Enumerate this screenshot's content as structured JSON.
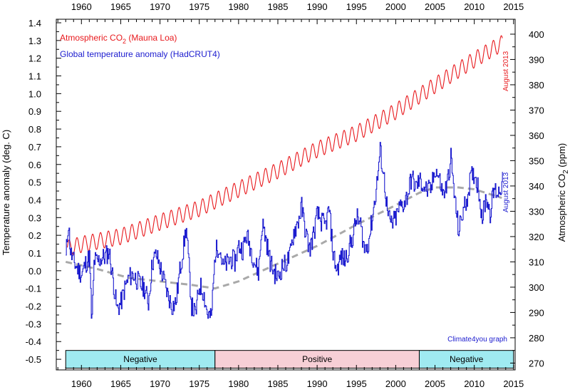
{
  "chart_data": {
    "type": "line",
    "x_ticks": [
      "1960",
      "1965",
      "1970",
      "1975",
      "1980",
      "1985",
      "1990",
      "1995",
      "2000",
      "2005",
      "2010",
      "2015"
    ],
    "x_values": [
      1960,
      1965,
      1970,
      1975,
      1980,
      1985,
      1990,
      1995,
      2000,
      2005,
      2010,
      2015
    ],
    "xlim": [
      1956.8,
      2015.2
    ],
    "y_left": {
      "label": "Temperature anomaly (deg. C)",
      "ticks": [
        "1.4",
        "1.3",
        "1.2",
        "1.1",
        "1.0",
        "0.9",
        "0.8",
        "0.7",
        "0.6",
        "0.5",
        "0.4",
        "0.3",
        "0.2",
        "0.1",
        "0.0",
        "-0.1",
        "-0.2",
        "-0.3",
        "-0.4",
        "-0.5"
      ],
      "tick_values": [
        1.4,
        1.3,
        1.2,
        1.1,
        1.0,
        0.9,
        0.8,
        0.7,
        0.6,
        0.5,
        0.4,
        0.3,
        0.2,
        0.1,
        0.0,
        -0.1,
        -0.2,
        -0.3,
        -0.4,
        -0.5
      ],
      "lim": [
        -0.56,
        1.42
      ]
    },
    "y_right": {
      "label_main": "Atmospheric CO",
      "label_sub": "2",
      "label_unit": " (ppm)",
      "ticks": [
        "400",
        "390",
        "380",
        "370",
        "360",
        "350",
        "340",
        "330",
        "320",
        "310",
        "300",
        "290",
        "280",
        "270"
      ],
      "tick_values": [
        400,
        390,
        380,
        370,
        360,
        350,
        340,
        330,
        320,
        310,
        300,
        290,
        280,
        270
      ],
      "lim": [
        267.3,
        405.9
      ]
    },
    "grid": false,
    "legend_position": "top-left",
    "series": [
      {
        "name": "Atmospheric CO",
        "name_sub": "2",
        "name_suffix": " (Mauna Loa)",
        "axis": "right",
        "color": "#e8191d",
        "trend_points": [
          [
            1958.2,
            315.3
          ],
          [
            1960,
            316.9
          ],
          [
            1965,
            320.0
          ],
          [
            1970,
            325.7
          ],
          [
            1975,
            331.1
          ],
          [
            1980,
            338.7
          ],
          [
            1985,
            346.1
          ],
          [
            1990,
            354.4
          ],
          [
            1995,
            360.8
          ],
          [
            2000,
            369.5
          ],
          [
            2005,
            379.8
          ],
          [
            2010,
            389.9
          ],
          [
            2013.6,
            396.5
          ]
        ],
        "seasonal_amplitude": 3.2
      },
      {
        "name": "Global temperature anomaly (HadCRUT4)",
        "axis": "left",
        "color": "#1c1ccf",
        "points": [
          [
            1958.0,
            0.07
          ],
          [
            1958.3,
            0.28
          ],
          [
            1958.6,
            0.1
          ],
          [
            1959.0,
            0.05
          ],
          [
            1959.5,
            0.01
          ],
          [
            1960.0,
            -0.02
          ],
          [
            1960.5,
            0.04
          ],
          [
            1961.0,
            0.08
          ],
          [
            1961.3,
            -0.32
          ],
          [
            1961.6,
            0.06
          ],
          [
            1962.0,
            0.05
          ],
          [
            1962.5,
            0.07
          ],
          [
            1963.0,
            0.08
          ],
          [
            1963.5,
            0.11
          ],
          [
            1964.0,
            -0.05
          ],
          [
            1964.5,
            -0.22
          ],
          [
            1965.0,
            -0.18
          ],
          [
            1965.5,
            -0.1
          ],
          [
            1966.0,
            -0.04
          ],
          [
            1966.5,
            -0.02
          ],
          [
            1967.0,
            -0.05
          ],
          [
            1967.5,
            -0.08
          ],
          [
            1968.0,
            -0.1
          ],
          [
            1968.5,
            -0.18
          ],
          [
            1969.0,
            0.05
          ],
          [
            1969.5,
            0.09
          ],
          [
            1970.0,
            0.02
          ],
          [
            1970.5,
            -0.06
          ],
          [
            1971.0,
            -0.14
          ],
          [
            1971.5,
            -0.2
          ],
          [
            1972.0,
            -0.18
          ],
          [
            1972.5,
            0.0
          ],
          [
            1973.0,
            0.14
          ],
          [
            1973.3,
            0.25
          ],
          [
            1973.6,
            0.06
          ],
          [
            1974.0,
            -0.2
          ],
          [
            1974.5,
            -0.25
          ],
          [
            1975.0,
            -0.08
          ],
          [
            1975.5,
            -0.12
          ],
          [
            1976.0,
            -0.24
          ],
          [
            1976.5,
            -0.27
          ],
          [
            1977.0,
            0.1
          ],
          [
            1977.5,
            0.15
          ],
          [
            1978.0,
            0.02
          ],
          [
            1978.5,
            0.04
          ],
          [
            1979.0,
            0.07
          ],
          [
            1979.5,
            0.05
          ],
          [
            1980.0,
            0.14
          ],
          [
            1980.5,
            0.12
          ],
          [
            1981.0,
            0.2
          ],
          [
            1981.5,
            0.13
          ],
          [
            1982.0,
            0.05
          ],
          [
            1982.5,
            -0.01
          ],
          [
            1983.0,
            0.27
          ],
          [
            1983.5,
            0.17
          ],
          [
            1984.0,
            0.05
          ],
          [
            1984.5,
            -0.01
          ],
          [
            1985.0,
            -0.04
          ],
          [
            1985.5,
            0.02
          ],
          [
            1986.0,
            0.04
          ],
          [
            1986.5,
            0.08
          ],
          [
            1987.0,
            0.22
          ],
          [
            1987.5,
            0.27
          ],
          [
            1988.0,
            0.36
          ],
          [
            1988.5,
            0.22
          ],
          [
            1989.0,
            0.12
          ],
          [
            1989.5,
            0.2
          ],
          [
            1990.0,
            0.32
          ],
          [
            1990.5,
            0.28
          ],
          [
            1991.0,
            0.25
          ],
          [
            1991.5,
            0.35
          ],
          [
            1992.0,
            0.1
          ],
          [
            1992.5,
            0.0
          ],
          [
            1993.0,
            0.08
          ],
          [
            1993.5,
            0.06
          ],
          [
            1994.0,
            0.12
          ],
          [
            1994.5,
            0.19
          ],
          [
            1995.0,
            0.3
          ],
          [
            1995.5,
            0.26
          ],
          [
            1996.0,
            0.12
          ],
          [
            1996.5,
            0.16
          ],
          [
            1997.0,
            0.3
          ],
          [
            1997.5,
            0.46
          ],
          [
            1998.0,
            0.68
          ],
          [
            1998.5,
            0.52
          ],
          [
            1999.0,
            0.3
          ],
          [
            1999.5,
            0.26
          ],
          [
            2000.0,
            0.3
          ],
          [
            2000.5,
            0.36
          ],
          [
            2001.0,
            0.38
          ],
          [
            2001.5,
            0.43
          ],
          [
            2002.0,
            0.53
          ],
          [
            2002.5,
            0.47
          ],
          [
            2003.0,
            0.51
          ],
          [
            2003.5,
            0.48
          ],
          [
            2004.0,
            0.45
          ],
          [
            2004.5,
            0.46
          ],
          [
            2005.0,
            0.58
          ],
          [
            2005.5,
            0.52
          ],
          [
            2006.0,
            0.43
          ],
          [
            2006.5,
            0.48
          ],
          [
            2007.0,
            0.64
          ],
          [
            2007.5,
            0.4
          ],
          [
            2008.0,
            0.22
          ],
          [
            2008.5,
            0.33
          ],
          [
            2009.0,
            0.4
          ],
          [
            2009.5,
            0.52
          ],
          [
            2010.0,
            0.55
          ],
          [
            2010.5,
            0.47
          ],
          [
            2011.0,
            0.3
          ],
          [
            2011.5,
            0.42
          ],
          [
            2012.0,
            0.33
          ],
          [
            2012.5,
            0.46
          ],
          [
            2013.0,
            0.44
          ],
          [
            2013.6,
            0.5
          ]
        ]
      },
      {
        "name": "",
        "axis": "left",
        "color": "#a9a9a9",
        "style": "dashed",
        "points": [
          [
            1958,
            0.05
          ],
          [
            1962,
            0.01
          ],
          [
            1966,
            -0.04
          ],
          [
            1970,
            -0.06
          ],
          [
            1974,
            -0.08
          ],
          [
            1977,
            -0.1
          ],
          [
            1980,
            -0.06
          ],
          [
            1985,
            0.04
          ],
          [
            1990,
            0.14
          ],
          [
            1995,
            0.26
          ],
          [
            2000,
            0.37
          ],
          [
            2003,
            0.44
          ],
          [
            2005,
            0.47
          ],
          [
            2008,
            0.47
          ],
          [
            2010,
            0.46
          ],
          [
            2013.6,
            0.41
          ]
        ]
      }
    ],
    "phases": [
      {
        "label": "Negative",
        "start": 1958,
        "end": 1977,
        "fill": "#9feaf1"
      },
      {
        "label": "Positive",
        "start": 1977,
        "end": 2003,
        "fill": "#f7cfd6"
      },
      {
        "label": "Negative",
        "start": 2003,
        "end": 2015,
        "fill": "#9feaf1"
      }
    ],
    "annotations": {
      "co2_note": "August 2013",
      "temp_note": "August 2013",
      "credit": "Climate4you graph"
    }
  }
}
